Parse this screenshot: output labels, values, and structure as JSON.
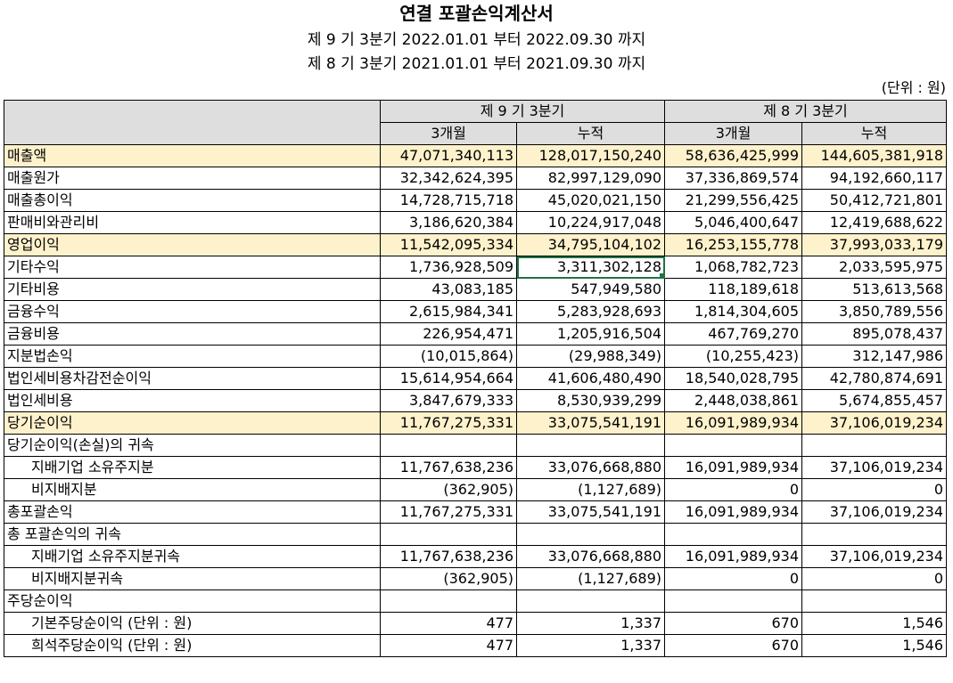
{
  "title": "연결 포괄손익계산서",
  "periods": [
    "제 9 기 3분기 2022.01.01 부터 2022.09.30 까지",
    "제 8 기 3분기 2021.01.01 부터 2021.09.30 까지"
  ],
  "unit": "(단위 : 원)",
  "header": {
    "group1": "제 9 기 3분기",
    "group2": "제 8 기 3분기",
    "sub": [
      "3개월",
      "누적",
      "3개월",
      "누적"
    ]
  },
  "rows": [
    {
      "label": "매출액",
      "values": [
        "47,071,340,113",
        "128,017,150,240",
        "58,636,425,999",
        "144,605,381,918"
      ]
    },
    {
      "label": "매출원가",
      "values": [
        "32,342,624,395",
        "82,997,129,090",
        "37,336,869,574",
        "94,192,660,117"
      ]
    },
    {
      "label": "매출총이익",
      "values": [
        "14,728,715,718",
        "45,020,021,150",
        "21,299,556,425",
        "50,412,721,801"
      ]
    },
    {
      "label": "판매비와관리비",
      "values": [
        "3,186,620,384",
        "10,224,917,048",
        "5,046,400,647",
        "12,419,688,622"
      ]
    },
    {
      "label": "영업이익",
      "values": [
        "11,542,095,334",
        "34,795,104,102",
        "16,253,155,778",
        "37,993,033,179"
      ]
    },
    {
      "label": "기타수익",
      "values": [
        "1,736,928,509",
        "3,311,302,128",
        "1,068,782,723",
        "2,033,595,975"
      ]
    },
    {
      "label": "기타비용",
      "values": [
        "43,083,185",
        "547,949,580",
        "118,189,618",
        "513,613,568"
      ]
    },
    {
      "label": "금융수익",
      "values": [
        "2,615,984,341",
        "5,283,928,693",
        "1,814,304,605",
        "3,850,789,556"
      ]
    },
    {
      "label": "금융비용",
      "values": [
        "226,954,471",
        "1,205,916,504",
        "467,769,270",
        "895,078,437"
      ]
    },
    {
      "label": "지분법손익",
      "values": [
        "(10,015,864)",
        "(29,988,349)",
        "(10,255,423)",
        "312,147,986"
      ]
    },
    {
      "label": "법인세비용차감전순이익",
      "values": [
        "15,614,954,664",
        "41,606,480,490",
        "18,540,028,795",
        "42,780,874,691"
      ]
    },
    {
      "label": "법인세비용",
      "values": [
        "3,847,679,333",
        "8,530,939,299",
        "2,448,038,861",
        "5,674,855,457"
      ]
    },
    {
      "label": "당기순이익",
      "values": [
        "11,767,275,331",
        "33,075,541,191",
        "16,091,989,934",
        "37,106,019,234"
      ]
    },
    {
      "label": "당기순이익(손실)의 귀속",
      "values": [
        "",
        "",
        "",
        ""
      ]
    },
    {
      "label": "지배기업 소유주지분",
      "values": [
        "11,767,638,236",
        "33,076,668,880",
        "16,091,989,934",
        "37,106,019,234"
      ]
    },
    {
      "label": "비지배지분",
      "values": [
        "(362,905)",
        "(1,127,689)",
        "0",
        "0"
      ]
    },
    {
      "label": "총포괄손익",
      "values": [
        "11,767,275,331",
        "33,075,541,191",
        "16,091,989,934",
        "37,106,019,234"
      ]
    },
    {
      "label": "총 포괄손익의 귀속",
      "values": [
        "",
        "",
        "",
        ""
      ]
    },
    {
      "label": "지배기업 소유주지분귀속",
      "values": [
        "11,767,638,236",
        "33,076,668,880",
        "16,091,989,934",
        "37,106,019,234"
      ]
    },
    {
      "label": "비지배지분귀속",
      "values": [
        "(362,905)",
        "(1,127,689)",
        "0",
        "0"
      ]
    },
    {
      "label": "주당순이익",
      "values": [
        "",
        "",
        "",
        ""
      ]
    },
    {
      "label": "기본주당순이익 (단위 : 원)",
      "values": [
        "477",
        "1,337",
        "670",
        "1,546"
      ]
    },
    {
      "label": "희석주당순이익 (단위 : 원)",
      "values": [
        "477",
        "1,337",
        "670",
        "1,546"
      ]
    }
  ]
}
